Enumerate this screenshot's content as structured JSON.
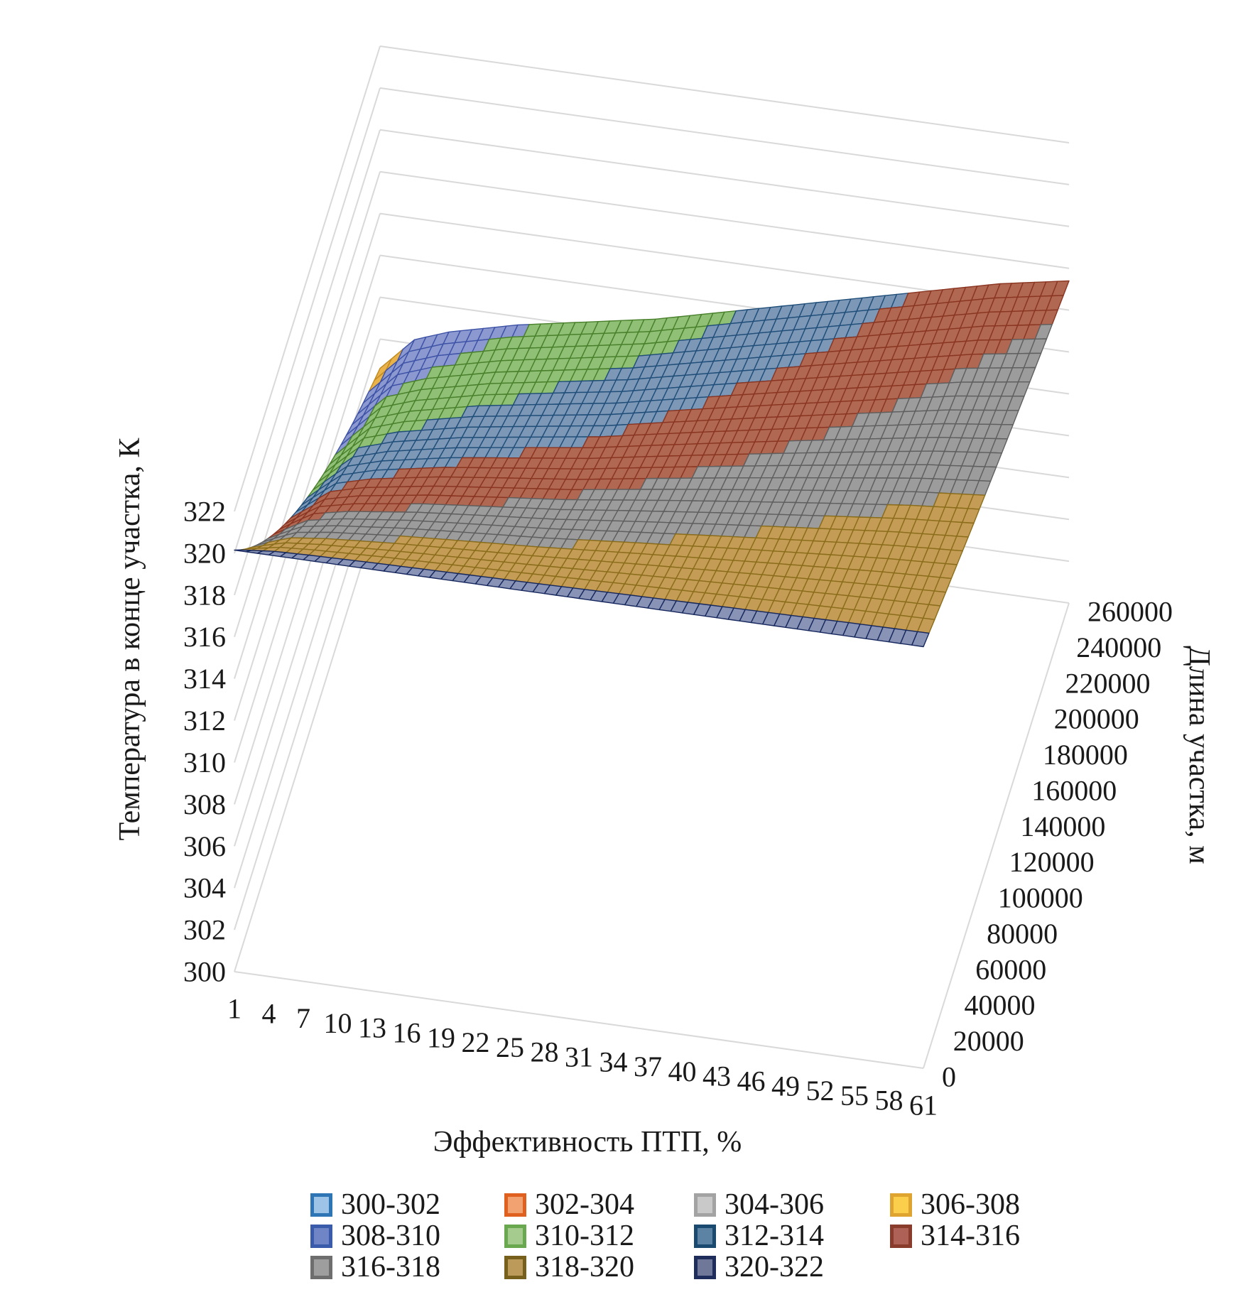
{
  "chart_data": {
    "type": "surface",
    "grid_color": "#D9D9D9",
    "x_axis": {
      "title": "Эффективность ПТП, %",
      "min": 1,
      "max": 61,
      "tick_step": 3,
      "tick_labels": [
        "1",
        "4",
        "7",
        "10",
        "13",
        "16",
        "19",
        "22",
        "25",
        "28",
        "31",
        "34",
        "37",
        "40",
        "43",
        "46",
        "49",
        "52",
        "55",
        "58",
        "61"
      ]
    },
    "depth_axis": {
      "title": "Длина участка, м",
      "min": 0,
      "max": 260000,
      "tick_step": 20000,
      "tick_labels": [
        "0",
        "20000",
        "40000",
        "60000",
        "80000",
        "100000",
        "120000",
        "140000",
        "160000",
        "180000",
        "200000",
        "220000",
        "240000",
        "260000"
      ]
    },
    "value_axis": {
      "title": "Температура в конце участка, К",
      "min": 300,
      "max": 322,
      "tick_step": 2,
      "tick_labels": [
        "300",
        "302",
        "304",
        "306",
        "308",
        "310",
        "312",
        "314",
        "316",
        "318",
        "320",
        "322"
      ]
    },
    "bands": [
      {
        "label": "300-302",
        "range": [
          300,
          302
        ],
        "legend_fill": "#9DC3E6",
        "legend_edge": "#2E75B6",
        "surface_fill": "#9DC3E6",
        "surface_line": "#2E75B6"
      },
      {
        "label": "302-304",
        "range": [
          302,
          304
        ],
        "legend_fill": "#F2A170",
        "legend_edge": "#E0611F",
        "surface_fill": "#F2A170",
        "surface_line": "#E0611F"
      },
      {
        "label": "304-306",
        "range": [
          304,
          306
        ],
        "legend_fill": "#C9C9C9",
        "legend_edge": "#A3A3A3",
        "surface_fill": "#C9C9C9",
        "surface_line": "#A3A3A3"
      },
      {
        "label": "306-308",
        "range": [
          306,
          308
        ],
        "legend_fill": "#FBCE4B",
        "legend_edge": "#DFA32F",
        "surface_fill": "#E9B34A",
        "surface_line": "#C08A20"
      },
      {
        "label": "308-310",
        "range": [
          308,
          310
        ],
        "legend_fill": "#7085C6",
        "legend_edge": "#3A5BA9",
        "surface_fill": "#8C99D0",
        "surface_line": "#3D52A6"
      },
      {
        "label": "310-312",
        "range": [
          310,
          312
        ],
        "legend_fill": "#A5CC8E",
        "legend_edge": "#69A84F",
        "surface_fill": "#8FC075",
        "surface_line": "#49802B"
      },
      {
        "label": "312-314",
        "range": [
          312,
          314
        ],
        "legend_fill": "#5C82A4",
        "legend_edge": "#1A4A70",
        "surface_fill": "#7D97B7",
        "surface_line": "#1F4E79"
      },
      {
        "label": "314-316",
        "range": [
          314,
          316
        ],
        "legend_fill": "#AE6156",
        "legend_edge": "#8A3C2C",
        "surface_fill": "#B06852",
        "surface_line": "#8A3522"
      },
      {
        "label": "316-318",
        "range": [
          316,
          318
        ],
        "legend_fill": "#9E9E9E",
        "legend_edge": "#6E6E6E",
        "surface_fill": "#9C9C9C",
        "surface_line": "#5F5F5F"
      },
      {
        "label": "318-320",
        "range": [
          318,
          320
        ],
        "legend_fill": "#BB9A5A",
        "legend_edge": "#76601C",
        "surface_fill": "#C49C55",
        "surface_line": "#8A6D1A"
      },
      {
        "label": "320-322",
        "range": [
          320,
          322
        ],
        "legend_fill": "#6F7899",
        "legend_edge": "#1E2D5C",
        "surface_fill": "#8893B5",
        "surface_line": "#17285E"
      }
    ],
    "surface": {
      "model": "T(eff,L) = 300 + (front_edge_temp-300) * r(eff)^(L/260000), r(eff) = (end_temp(eff)-300)/(front_edge_temp-300)",
      "front_edge_temp": 320.15,
      "eff_knots": [
        1,
        4,
        7,
        10,
        13,
        16,
        19,
        22,
        25,
        28,
        31,
        34,
        37,
        40,
        43,
        46,
        49,
        52,
        55,
        58,
        61
      ],
      "end_temps": [
        306.6,
        308.2,
        308.8,
        309.2,
        309.6,
        309.9,
        310.2,
        310.5,
        310.8,
        311.2,
        311.6,
        312.0,
        312.4,
        312.8,
        313.2,
        313.6,
        314.0,
        314.4,
        314.8,
        315.1,
        315.4
      ],
      "eff_cell": 1,
      "length_cell": 10000
    },
    "legend": {
      "position": "bottom",
      "rows": [
        4,
        4,
        3
      ]
    }
  }
}
